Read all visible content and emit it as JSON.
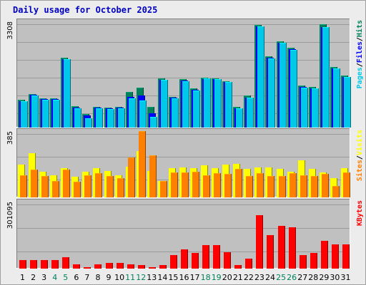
{
  "title": "Daily usage for October 2025",
  "colors": {
    "hits": "#00805c",
    "files": "#0000ff",
    "pages": "#00c8e8",
    "visits": "#ffff00",
    "sites": "#ff8000",
    "kbytes": "#ff0000",
    "weekend": "#00805c",
    "weekday": "#000000",
    "panel": "#c0c0c0"
  },
  "chart_data": [
    {
      "type": "bar",
      "categories": [
        "1",
        "2",
        "3",
        "4",
        "5",
        "6",
        "7",
        "8",
        "9",
        "10",
        "11",
        "12",
        "13",
        "14",
        "15",
        "16",
        "17",
        "18",
        "19",
        "20",
        "21",
        "22",
        "23",
        "24",
        "25",
        "26",
        "27",
        "28",
        "29",
        "30",
        "31"
      ],
      "weekend_days": [
        "4",
        "5",
        "11",
        "12",
        "18",
        "19",
        "25",
        "26"
      ],
      "ymax_label": "3308",
      "ylim": [
        0,
        3308
      ],
      "legend": [
        {
          "label": "Hits",
          "key": "hits"
        },
        {
          "label": "Files",
          "key": "files"
        },
        {
          "label": "Pages",
          "key": "pages"
        }
      ],
      "legend_separator": "/",
      "series": [
        {
          "name": "Hits",
          "key": "hits",
          "values": [
            860,
            1050,
            910,
            920,
            2170,
            660,
            420,
            650,
            620,
            650,
            1100,
            1250,
            640,
            1530,
            960,
            1500,
            1220,
            1560,
            1540,
            1450,
            650,
            1000,
            3200,
            2230,
            2690,
            2480,
            1300,
            1260,
            3220,
            1880,
            1610
          ]
        },
        {
          "name": "Files",
          "key": "files",
          "values": [
            830,
            1030,
            880,
            890,
            2140,
            630,
            370,
            620,
            590,
            620,
            960,
            1010,
            440,
            1490,
            930,
            1470,
            1180,
            1520,
            1510,
            1430,
            600,
            940,
            3150,
            2180,
            2650,
            2440,
            1270,
            1230,
            3120,
            1840,
            1580
          ]
        },
        {
          "name": "Pages",
          "key": "pages",
          "values": [
            820,
            1010,
            860,
            860,
            2130,
            610,
            290,
            610,
            570,
            600,
            920,
            850,
            340,
            1480,
            920,
            1440,
            1160,
            1530,
            1510,
            1420,
            600,
            940,
            3150,
            2150,
            2650,
            2420,
            1250,
            1220,
            3120,
            1840,
            1570
          ]
        }
      ]
    },
    {
      "type": "bar",
      "categories": [
        "1",
        "2",
        "3",
        "4",
        "5",
        "6",
        "7",
        "8",
        "9",
        "10",
        "11",
        "12",
        "13",
        "14",
        "15",
        "16",
        "17",
        "18",
        "19",
        "20",
        "21",
        "22",
        "23",
        "24",
        "25",
        "26",
        "27",
        "28",
        "29",
        "30",
        "31"
      ],
      "ymax_label": "385",
      "ylim": [
        0,
        385
      ],
      "legend": [
        {
          "label": "Visits",
          "key": "visits"
        },
        {
          "label": "Sites",
          "key": "sites"
        }
      ],
      "legend_separator": "/",
      "series": [
        {
          "name": "Visits",
          "key": "visits",
          "values": [
            190,
            255,
            150,
            130,
            170,
            120,
            150,
            170,
            155,
            130,
            180,
            270,
            155,
            95,
            170,
            175,
            170,
            185,
            170,
            190,
            195,
            165,
            175,
            175,
            165,
            150,
            215,
            165,
            145,
            110,
            170
          ]
        },
        {
          "name": "Sites",
          "key": "sites",
          "values": [
            130,
            160,
            125,
            95,
            160,
            90,
            130,
            140,
            125,
            110,
            230,
            385,
            245,
            95,
            145,
            145,
            150,
            130,
            140,
            135,
            165,
            125,
            140,
            125,
            125,
            140,
            130,
            125,
            135,
            65,
            145
          ]
        }
      ]
    },
    {
      "type": "bar",
      "categories": [
        "1",
        "2",
        "3",
        "4",
        "5",
        "6",
        "7",
        "8",
        "9",
        "10",
        "11",
        "12",
        "13",
        "14",
        "15",
        "16",
        "17",
        "18",
        "19",
        "20",
        "21",
        "22",
        "23",
        "24",
        "25",
        "26",
        "27",
        "28",
        "29",
        "30",
        "31"
      ],
      "ymax_label": "301095",
      "ylim": [
        0,
        301095
      ],
      "legend": [
        {
          "label": "KBytes",
          "key": "kbytes"
        }
      ],
      "legend_separator": "/",
      "series": [
        {
          "name": "KBytes",
          "key": "kbytes",
          "values": [
            40000,
            37000,
            40000,
            40000,
            50000,
            20000,
            5000,
            20000,
            25000,
            25000,
            20000,
            15000,
            5000,
            15000,
            60000,
            85000,
            70000,
            105000,
            105000,
            75000,
            15000,
            45000,
            240000,
            150000,
            192000,
            185000,
            60000,
            72000,
            125000,
            110000,
            110000
          ]
        }
      ]
    }
  ]
}
